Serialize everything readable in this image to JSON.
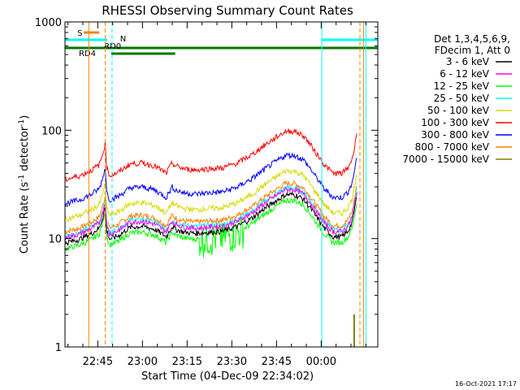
{
  "chart_data": {
    "type": "line",
    "title": "RHESSI Observing Summary Count Rates",
    "xlabel": "Start Time (04-Dec-09 22:34:02)",
    "ylabel_main": "Count Rate (s",
    "ylabel_sup": "-1",
    "ylabel_rest": " detector",
    "ylabel_end": ")",
    "y_scale": "log",
    "ylim": [
      1,
      1000
    ],
    "xlim_minutes": [
      0,
      105
    ],
    "y_ticks": [
      {
        "v": 1,
        "label": "1"
      },
      {
        "v": 10,
        "label": "10"
      },
      {
        "v": 100,
        "label": "100"
      },
      {
        "v": 1000,
        "label": "1000"
      }
    ],
    "x_ticks": [
      {
        "m": 11,
        "label": "22:45"
      },
      {
        "m": 26,
        "label": "23:00"
      },
      {
        "m": 41,
        "label": "23:15"
      },
      {
        "m": 56,
        "label": "23:30"
      },
      {
        "m": 71,
        "label": "23:45"
      },
      {
        "m": 86,
        "label": "00:00"
      }
    ],
    "legend_header": [
      "Det 1,3,4,5,6,9,",
      "FDecim 1, Att 0"
    ],
    "legend_position": "top-right",
    "footer": "16-Oct-2021 17:17",
    "flag_labels": [
      {
        "text": "S",
        "color": "#ff8000"
      },
      {
        "text": "N",
        "color": "#00ffff"
      },
      {
        "text": "RD4",
        "color": "#007700"
      },
      {
        "text": "RD0",
        "color": "#007700"
      }
    ],
    "series": [
      {
        "name": "3 - 6 keV",
        "color": "#000000",
        "mult": 0.26
      },
      {
        "name": "6 - 12 keV",
        "color": "#ff00ff",
        "mult": 0.29
      },
      {
        "name": "12 - 25 keV",
        "color": "#00ff00",
        "mult": 0.23
      },
      {
        "name": "25 - 50 keV",
        "color": "#00ffff",
        "mult": 0.3
      },
      {
        "name": "50 - 100 keV",
        "color": "#d8d800",
        "mult": 0.43
      },
      {
        "name": "100 - 300 keV",
        "color": "#ff0000",
        "mult": 1.0
      },
      {
        "name": "300 - 800 keV",
        "color": "#0000ff",
        "mult": 0.6
      },
      {
        "name": "800 - 7000 keV",
        "color": "#ff8000",
        "mult": 0.33
      },
      {
        "name": "7000 - 15000 keV",
        "color": "#808000",
        "mult": 0
      }
    ],
    "base_profile_100_300keV": [
      [
        0,
        35
      ],
      [
        5,
        38
      ],
      [
        9,
        43
      ],
      [
        11.5,
        48
      ],
      [
        12.5,
        58
      ],
      [
        13.5,
        75
      ],
      [
        14,
        45
      ],
      [
        15,
        38
      ],
      [
        18,
        41
      ],
      [
        22,
        49
      ],
      [
        26,
        50
      ],
      [
        30,
        47
      ],
      [
        34,
        40
      ],
      [
        36,
        50
      ],
      [
        37,
        47
      ],
      [
        40,
        44
      ],
      [
        44,
        43
      ],
      [
        48,
        44
      ],
      [
        53,
        45
      ],
      [
        58,
        50
      ],
      [
        63,
        60
      ],
      [
        68,
        76
      ],
      [
        72,
        90
      ],
      [
        74,
        98
      ],
      [
        77,
        98
      ],
      [
        80,
        89
      ],
      [
        84,
        63
      ],
      [
        87,
        48
      ],
      [
        90,
        40
      ],
      [
        93,
        40
      ],
      [
        95,
        45
      ],
      [
        96.5,
        55
      ],
      [
        97.5,
        80
      ],
      [
        98,
        95
      ]
    ]
  }
}
